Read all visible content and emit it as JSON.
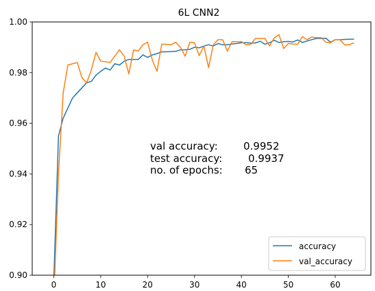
{
  "chart_data": {
    "type": "line",
    "title": "6L CNN2",
    "xlabel": "",
    "ylabel": "",
    "xlim": [
      -4.6,
      67.6
    ],
    "ylim": [
      0.9,
      1.0
    ],
    "x_ticks": [
      0,
      10,
      20,
      30,
      40,
      50,
      60
    ],
    "y_ticks": [
      0.9,
      0.92,
      0.94,
      0.96,
      0.98,
      1.0
    ],
    "y_tick_labels": [
      "0.90",
      "0.92",
      "0.94",
      "0.96",
      "0.98",
      "1.00"
    ],
    "grid": false,
    "legend_position": "lower right",
    "x": [
      0,
      1,
      2,
      3,
      4,
      5,
      6,
      7,
      8,
      9,
      10,
      11,
      12,
      13,
      14,
      15,
      16,
      17,
      18,
      19,
      20,
      21,
      22,
      23,
      24,
      25,
      26,
      27,
      28,
      29,
      30,
      31,
      32,
      33,
      34,
      35,
      36,
      37,
      38,
      39,
      40,
      41,
      42,
      43,
      44,
      45,
      46,
      47,
      48,
      49,
      50,
      51,
      52,
      53,
      54,
      55,
      56,
      57,
      58,
      59,
      60,
      61,
      62,
      63,
      64
    ],
    "series": [
      {
        "name": "accuracy",
        "color": "#1f77b4",
        "values": [
          0.898,
          0.955,
          0.962,
          0.966,
          0.97,
          0.972,
          0.974,
          0.976,
          0.9765,
          0.979,
          0.9805,
          0.9818,
          0.981,
          0.9835,
          0.983,
          0.9845,
          0.9852,
          0.9852,
          0.9852,
          0.987,
          0.986,
          0.987,
          0.9875,
          0.9882,
          0.9882,
          0.9883,
          0.9884,
          0.989,
          0.989,
          0.9892,
          0.99,
          0.9898,
          0.9905,
          0.991,
          0.9905,
          0.9915,
          0.991,
          0.991,
          0.9913,
          0.9915,
          0.9918,
          0.9918,
          0.9917,
          0.9917,
          0.9924,
          0.9912,
          0.9918,
          0.9928,
          0.9919,
          0.9922,
          0.9923,
          0.9921,
          0.9929,
          0.9919,
          0.9925,
          0.993,
          0.9935,
          0.9935,
          0.9936,
          0.992,
          0.993,
          0.993,
          0.9931,
          0.9932,
          0.9932
        ]
      },
      {
        "name": "val_accuracy",
        "color": "#ff7f0e",
        "values": [
          0.89,
          0.94,
          0.972,
          0.983,
          0.9835,
          0.984,
          0.978,
          0.976,
          0.981,
          0.988,
          0.9845,
          0.9843,
          0.984,
          0.9865,
          0.989,
          0.9865,
          0.9795,
          0.989,
          0.9885,
          0.991,
          0.992,
          0.985,
          0.9805,
          0.9912,
          0.9912,
          0.991,
          0.992,
          0.99,
          0.9865,
          0.992,
          0.9918,
          0.9867,
          0.9905,
          0.982,
          0.991,
          0.993,
          0.993,
          0.9885,
          0.9922,
          0.9922,
          0.9922,
          0.991,
          0.9912,
          0.9935,
          0.9935,
          0.9935,
          0.9905,
          0.9937,
          0.995,
          0.9895,
          0.9915,
          0.9913,
          0.9912,
          0.9942,
          0.993,
          0.994,
          0.9938,
          0.9938,
          0.992,
          0.9918,
          0.993,
          0.993,
          0.991,
          0.991,
          0.9918
        ]
      }
    ],
    "annotations": [
      {
        "label": "val accuracy:",
        "value": "0.9952"
      },
      {
        "label": "test accuracy:",
        "value": "0.9937"
      },
      {
        "label": "no. of epochs:",
        "value": "65"
      }
    ]
  }
}
